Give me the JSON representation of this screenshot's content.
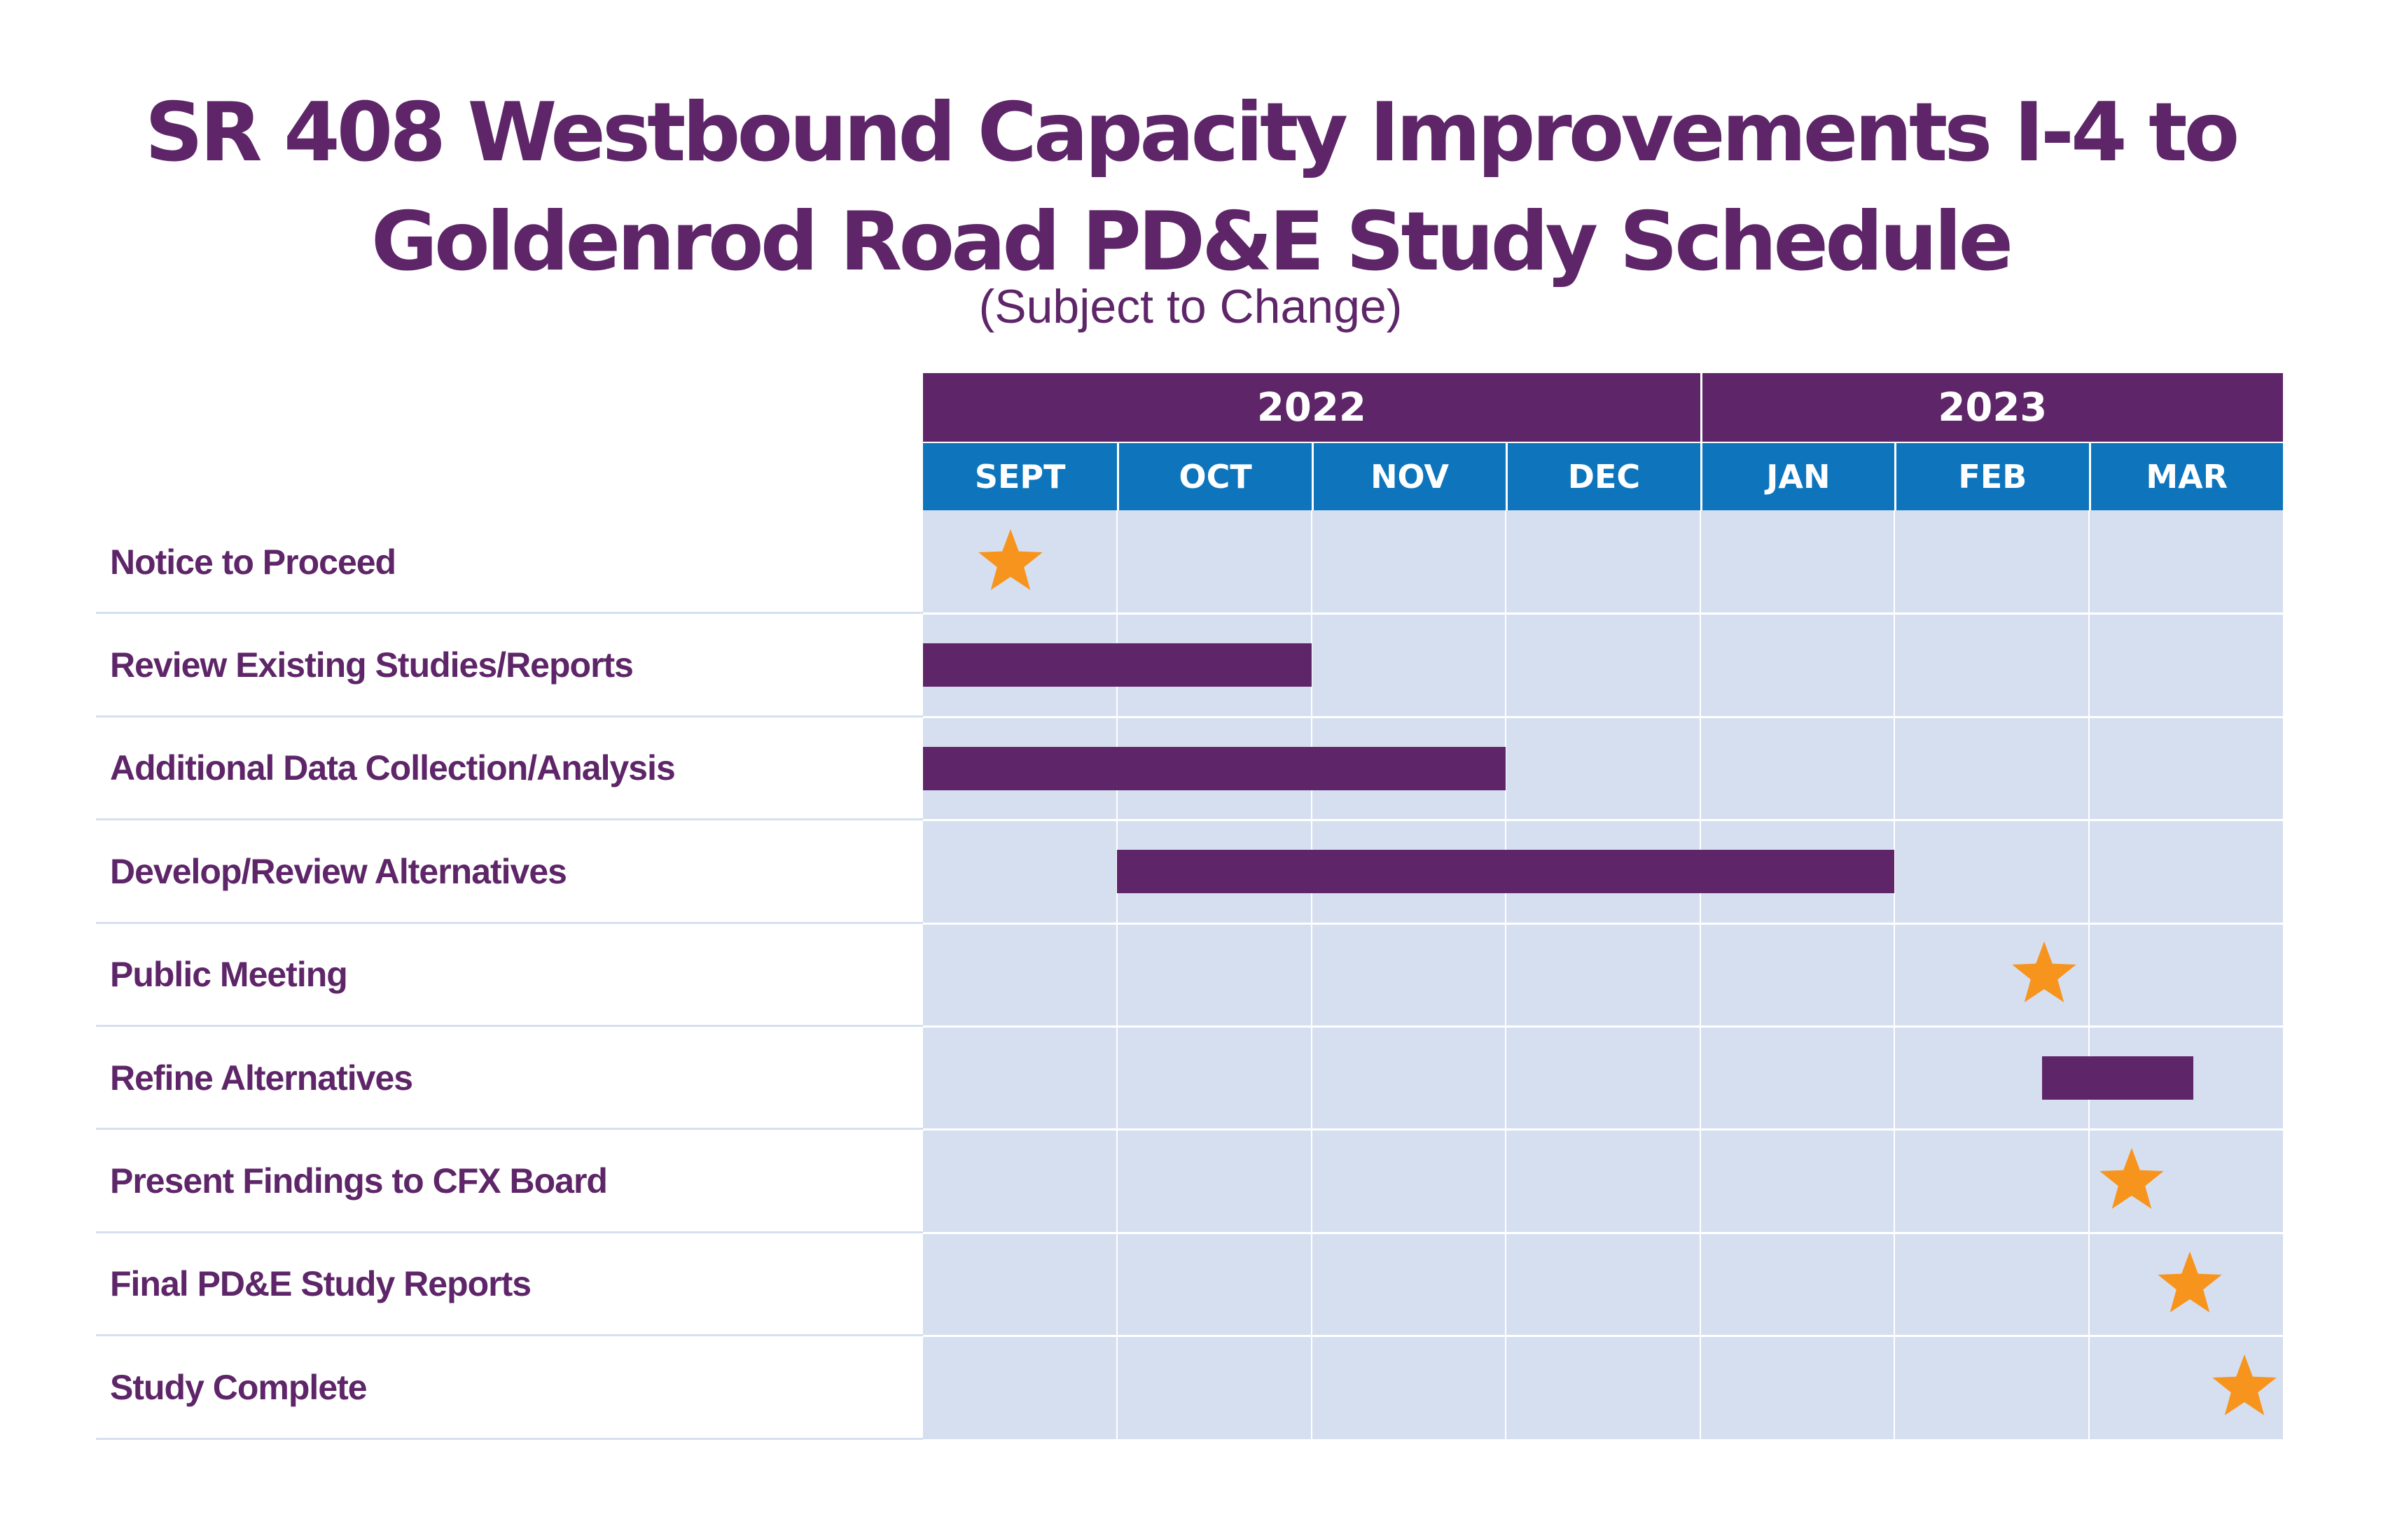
{
  "title_line1": "SR 408 Westbound Capacity Improvements I-4 to",
  "title_line2": "Goldenrod Road PD&E Study Schedule",
  "subtitle": "(Subject to Change)",
  "colors": {
    "purple": "#5e2669",
    "blue": "#0e75bd",
    "grid_bg": "#d6dff0",
    "star": "#f7941d"
  },
  "chart_data": {
    "type": "gantt",
    "title": "SR 408 Westbound Capacity Improvements I-4 to Goldenrod Road PD&E Study Schedule",
    "subtitle": "(Subject to Change)",
    "years": [
      {
        "label": "2022",
        "months": [
          "SEPT",
          "OCT",
          "NOV",
          "DEC"
        ]
      },
      {
        "label": "2023",
        "months": [
          "JAN",
          "FEB",
          "MAR"
        ]
      }
    ],
    "months": [
      "SEPT",
      "OCT",
      "NOV",
      "DEC",
      "JAN",
      "FEB",
      "MAR"
    ],
    "tasks": [
      {
        "name": "Notice to Proceed",
        "type": "milestone",
        "at": 0.45
      },
      {
        "name": "Review Existing Studies/Reports",
        "type": "bar",
        "start": 0.0,
        "end": 2.0
      },
      {
        "name": "Additional Data Collection/Analysis",
        "type": "bar",
        "start": 0.0,
        "end": 3.0
      },
      {
        "name": "Develop/Review Alternatives",
        "type": "bar",
        "start": 1.0,
        "end": 5.0
      },
      {
        "name": "Public Meeting",
        "type": "milestone",
        "at": 5.77
      },
      {
        "name": "Refine Alternatives",
        "type": "bar",
        "start": 5.76,
        "end": 6.54
      },
      {
        "name": "Present Findings to CFX Board",
        "type": "milestone",
        "at": 6.22
      },
      {
        "name": "Final PD&E Study Reports",
        "type": "milestone",
        "at": 6.52
      },
      {
        "name": "Study Complete",
        "type": "milestone",
        "at": 6.8
      }
    ]
  }
}
